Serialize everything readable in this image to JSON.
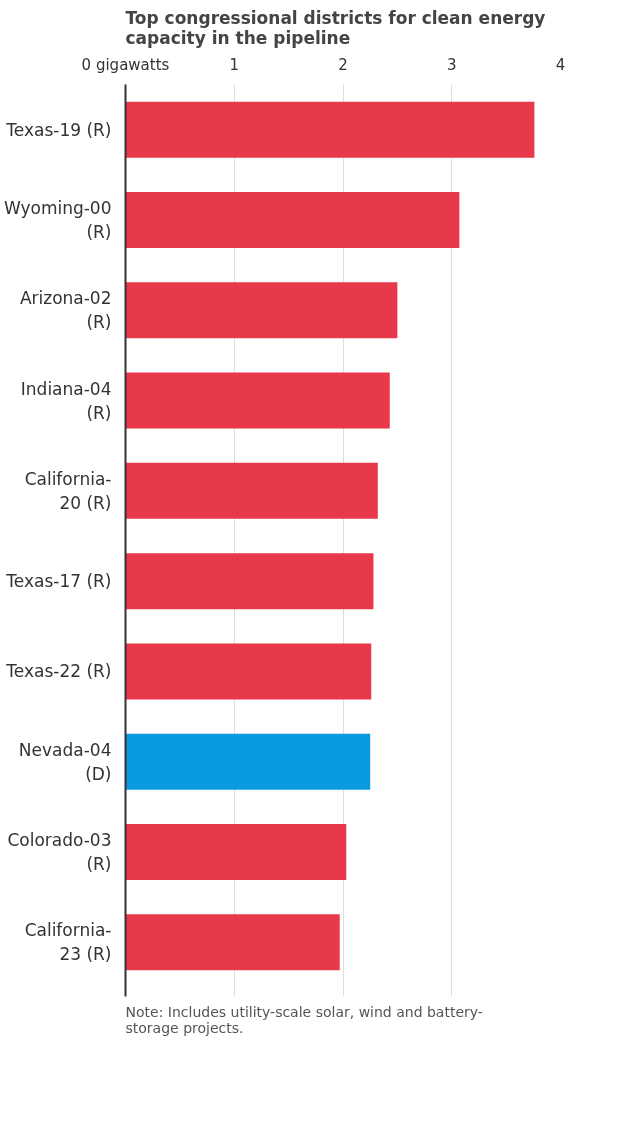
{
  "chart_data": {
    "type": "bar",
    "orientation": "horizontal",
    "title": "Top congressional districts for clean energy capacity in the pipeline",
    "categories": [
      "Texas-19 (R)",
      "Wyoming-00 (R)",
      "Arizona-02 (R)",
      "Indiana-04 (R)",
      "California-20 (R)",
      "Texas-17 (R)",
      "Texas-22 (R)",
      "Nevada-04 (D)",
      "Colorado-03 (R)",
      "California-23 (R)"
    ],
    "values": [
      3.76,
      3.07,
      2.5,
      2.43,
      2.32,
      2.28,
      2.26,
      2.25,
      2.03,
      1.97
    ],
    "colors": [
      "#e8394a",
      "#e8394a",
      "#e8394a",
      "#e8394a",
      "#e8394a",
      "#e8394a",
      "#e8394a",
      "#0a9ae0",
      "#e8394a",
      "#e8394a"
    ],
    "xlim": [
      0,
      4
    ],
    "xticks": [
      {
        "value": 0,
        "label": "0 gigawatts"
      },
      1,
      2,
      3,
      4
    ],
    "grid": "x",
    "annotations": [
      "Note: Includes utility-scale solar, wind and battery-storage projects."
    ]
  }
}
